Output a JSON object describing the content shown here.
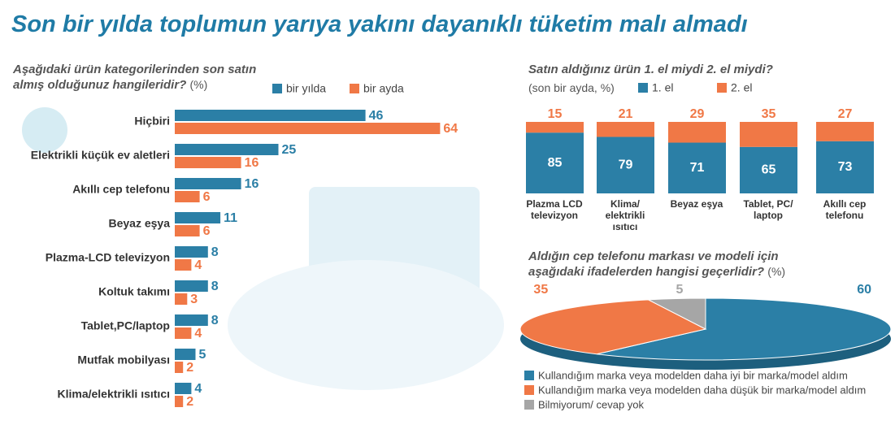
{
  "title": "Son bir yılda toplumun yarıya yakını dayanıklı tüketim malı almadı",
  "chart_data": [
    {
      "type": "hbar",
      "title": "Aşağıdaki ürün kategorilerinden son satın almış olduğunuz hangileridir?",
      "unit": "(%)",
      "categories": [
        "Hiçbiri",
        "Elektrikli küçük ev aletleri",
        "Akıllı cep telefonu",
        "Beyaz eşya",
        "Plazma-LCD televizyon",
        "Koltuk takımı",
        "Tablet,PC/laptop",
        "Mutfak mobilyası",
        "Klima/elektrikli ısıtıcı"
      ],
      "series": [
        {
          "name": "bir yılda",
          "color": "#2b7fa6",
          "values": [
            46,
            25,
            16,
            11,
            8,
            8,
            8,
            5,
            4
          ]
        },
        {
          "name": "bir ayda",
          "color": "#f07846",
          "values": [
            64,
            16,
            6,
            6,
            4,
            3,
            4,
            2,
            2
          ]
        }
      ]
    },
    {
      "type": "stacked",
      "title": "Satın aldığınız ürün 1. el miydi 2. el miydi?",
      "subtitle": "(son bir ayda, %)",
      "categories": [
        "Plazma LCD televizyon",
        "Klima/ elektrikli ısıtıcı",
        "Beyaz eşya",
        "Tablet, PC/ laptop",
        "Akıllı cep telefonu"
      ],
      "series": [
        {
          "name": "1. el",
          "color": "#2b7fa6",
          "values": [
            85,
            79,
            71,
            65,
            73
          ]
        },
        {
          "name": "2. el",
          "color": "#f07846",
          "values": [
            15,
            21,
            29,
            35,
            27
          ]
        }
      ]
    },
    {
      "type": "pie",
      "title": "Aldığın cep telefonu markası ve modeli için aşağıdaki ifadelerden hangisi geçerlidir?",
      "unit": "(%)",
      "categories": [
        "Kullandığım marka veya modelden daha iyi bir marka/model aldım",
        "Kullandığım marka veya modelden daha düşük bir marka/model aldım",
        "Bilmiyorum/ cevap yok"
      ],
      "values": [
        60,
        35,
        5
      ],
      "colors": [
        "#2b7fa6",
        "#f07846",
        "#a6a6a6"
      ]
    }
  ]
}
